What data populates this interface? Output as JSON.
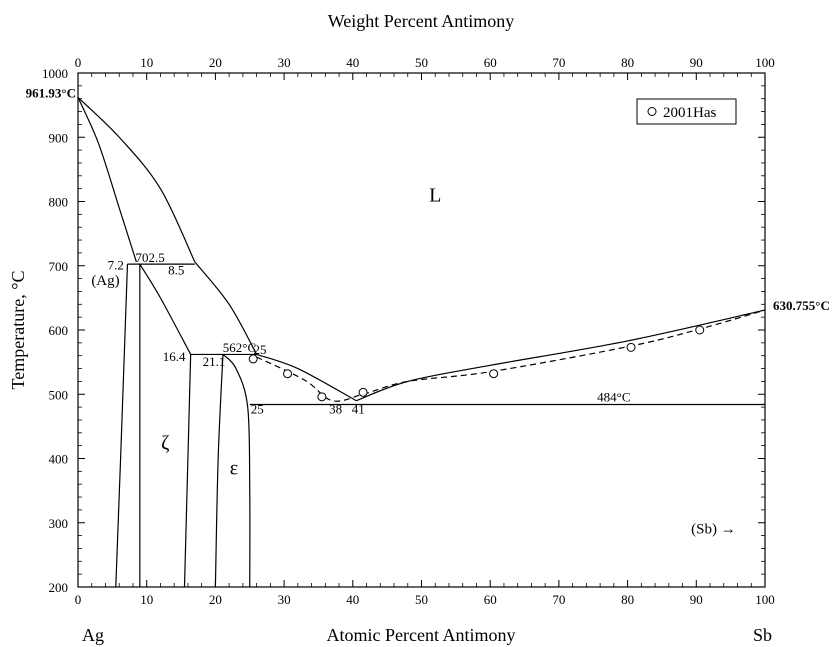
{
  "chart_data": {
    "type": "line",
    "title": "Weight Percent Antimony",
    "xlabel": "Atomic Percent Antimony",
    "ylabel": "Temperature, °C",
    "xlim": [
      0,
      100
    ],
    "ylim": [
      200,
      1000
    ],
    "x_ticks": [
      0,
      10,
      20,
      30,
      40,
      50,
      60,
      70,
      80,
      90,
      100
    ],
    "y_ticks": [
      200,
      300,
      400,
      500,
      600,
      700,
      800,
      900,
      1000
    ],
    "top_ticks": [
      0,
      10,
      20,
      30,
      40,
      50,
      60,
      70,
      80,
      90,
      100
    ],
    "ag_label": "Ag",
    "sb_label": "Sb",
    "legend": {
      "label": "2001Has",
      "position": "top-right"
    },
    "phase_labels": [
      {
        "text": "L",
        "x": 52,
        "y": 800
      },
      {
        "text": "(Ag)",
        "x": 4,
        "y": 670
      },
      {
        "text": "ζ",
        "x": 12.7,
        "y": 415
      },
      {
        "text": "ε",
        "x": 22.7,
        "y": 375
      },
      {
        "text": "(Sb) →",
        "x": 92.5,
        "y": 283
      }
    ],
    "annotations": [
      {
        "text": "961.93°C",
        "x": 0,
        "y": 962,
        "bold": true
      },
      {
        "text": "630.755°C",
        "x": 100,
        "y": 631,
        "bold": true
      },
      {
        "text": "702.5",
        "x": 10.5,
        "y": 706
      },
      {
        "text": "7.2",
        "x": 5.5,
        "y": 694
      },
      {
        "text": "8.5",
        "x": 14.3,
        "y": 686
      },
      {
        "text": "562°C",
        "x": 23.5,
        "y": 566
      },
      {
        "text": "25",
        "x": 26.5,
        "y": 563
      },
      {
        "text": "16.4",
        "x": 14,
        "y": 552
      },
      {
        "text": "21.1",
        "x": 19.8,
        "y": 544
      },
      {
        "text": "25",
        "x": 26.1,
        "y": 470
      },
      {
        "text": "38",
        "x": 37.5,
        "y": 470
      },
      {
        "text": "41",
        "x": 40.8,
        "y": 470
      },
      {
        "text": "484°C",
        "x": 78,
        "y": 489
      }
    ],
    "series": [
      {
        "name": "",
        "style": "solid",
        "points": [
          [
            0,
            962
          ],
          [
            3,
            890
          ],
          [
            6,
            790
          ],
          [
            8.5,
            706
          ]
        ]
      },
      {
        "name": "",
        "style": "solid",
        "points": [
          [
            0,
            962
          ],
          [
            6,
            900
          ],
          [
            12,
            820
          ],
          [
            17,
            706
          ]
        ]
      },
      {
        "name": "",
        "style": "solid",
        "points": [
          [
            17,
            706
          ],
          [
            22,
            640
          ],
          [
            26,
            562
          ]
        ]
      },
      {
        "name": "",
        "style": "solid",
        "points": [
          [
            26,
            562
          ],
          [
            32,
            540
          ],
          [
            40.5,
            490
          ]
        ]
      },
      {
        "name": "",
        "style": "solid",
        "points": [
          [
            40.5,
            490
          ],
          [
            48,
            520
          ],
          [
            60,
            545
          ],
          [
            80,
            583
          ],
          [
            100,
            631
          ]
        ]
      },
      {
        "name": "",
        "style": "solid",
        "points": [
          [
            7.2,
            702.5
          ],
          [
            17,
            702.5
          ]
        ]
      },
      {
        "name": "",
        "style": "solid",
        "points": [
          [
            5.5,
            200
          ],
          [
            6.2,
            400
          ],
          [
            7.2,
            702.5
          ]
        ]
      },
      {
        "name": "",
        "style": "solid",
        "points": [
          [
            9,
            200
          ],
          [
            9,
            702.5
          ]
        ]
      },
      {
        "name": "",
        "style": "solid",
        "points": [
          [
            9,
            702.5
          ],
          [
            12,
            650
          ],
          [
            16.4,
            562
          ]
        ]
      },
      {
        "name": "",
        "style": "solid",
        "points": [
          [
            16.4,
            562
          ],
          [
            26,
            562
          ]
        ]
      },
      {
        "name": "",
        "style": "solid",
        "points": [
          [
            15.5,
            200
          ],
          [
            16.4,
            562
          ]
        ]
      },
      {
        "name": "",
        "style": "solid",
        "points": [
          [
            20,
            200
          ],
          [
            20.4,
            400
          ],
          [
            21.1,
            562
          ]
        ]
      },
      {
        "name": "",
        "style": "solid",
        "points": [
          [
            21.1,
            562
          ],
          [
            23,
            540
          ],
          [
            24.7,
            480
          ],
          [
            25,
            350
          ],
          [
            25,
            200
          ]
        ]
      },
      {
        "name": "",
        "style": "solid",
        "points": [
          [
            25,
            484
          ],
          [
            100,
            484
          ]
        ]
      },
      {
        "name": "",
        "style": "dashed",
        "points": [
          [
            26,
            558
          ],
          [
            33,
            522
          ],
          [
            37,
            490
          ],
          [
            41.5,
            500
          ],
          [
            48,
            520
          ],
          [
            60,
            535
          ],
          [
            80,
            574
          ],
          [
            90,
            600
          ],
          [
            100,
            631
          ]
        ]
      }
    ],
    "data_points": [
      {
        "x": 25.5,
        "y": 555
      },
      {
        "x": 30.5,
        "y": 532
      },
      {
        "x": 35.5,
        "y": 496
      },
      {
        "x": 41.5,
        "y": 503
      },
      {
        "x": 60.5,
        "y": 532
      },
      {
        "x": 80.5,
        "y": 573
      },
      {
        "x": 90.5,
        "y": 600
      }
    ]
  }
}
